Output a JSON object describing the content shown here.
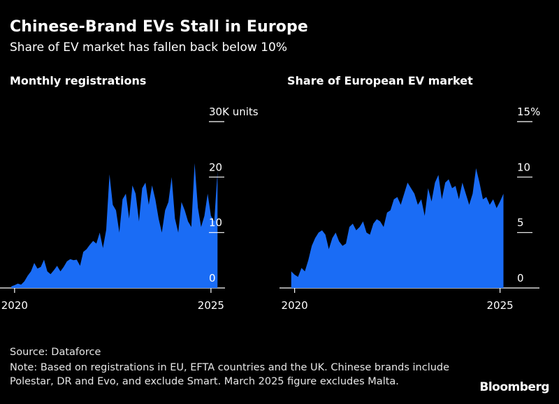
{
  "header": {
    "title": "Chinese-Brand EVs Stall in Europe",
    "subtitle": "Share of EV market has fallen back below 10%"
  },
  "footer": {
    "source": "Source: Dataforce",
    "note": "Note: Based on registrations in EU, EFTA countries and the UK. Chinese brands include Polestar, DR and Evo, and exclude Smart. March 2025 figure excludes Malta.",
    "brand": "Bloomberg"
  },
  "colors": {
    "area": "#1a6cf5",
    "background": "#000000",
    "axis": "#ffffff"
  },
  "chart_data": [
    {
      "type": "area",
      "title": "Monthly registrations",
      "ylabel": "30K units",
      "ylim": [
        0,
        30
      ],
      "yticks": [
        {
          "value": 0,
          "label": "0"
        },
        {
          "value": 10,
          "label": "10"
        },
        {
          "value": 20,
          "label": "20"
        },
        {
          "value": 30,
          "label": "30K units"
        }
      ],
      "xticks": [
        {
          "value": 2020.0,
          "label": "2020"
        },
        {
          "value": 2025.0,
          "label": "2025"
        }
      ],
      "xlim": [
        2019.7,
        2025.5
      ],
      "x": [
        2019.917,
        2020.0,
        2020.083,
        2020.167,
        2020.25,
        2020.333,
        2020.417,
        2020.5,
        2020.583,
        2020.667,
        2020.75,
        2020.833,
        2020.917,
        2021.0,
        2021.083,
        2021.167,
        2021.25,
        2021.333,
        2021.417,
        2021.5,
        2021.583,
        2021.667,
        2021.75,
        2021.833,
        2021.917,
        2022.0,
        2022.083,
        2022.167,
        2022.25,
        2022.333,
        2022.417,
        2022.5,
        2022.583,
        2022.667,
        2022.75,
        2022.833,
        2022.917,
        2023.0,
        2023.083,
        2023.167,
        2023.25,
        2023.333,
        2023.417,
        2023.5,
        2023.583,
        2023.667,
        2023.75,
        2023.833,
        2023.917,
        2024.0,
        2024.083,
        2024.167,
        2024.25,
        2024.333,
        2024.417,
        2024.5,
        2024.583,
        2024.667,
        2024.75,
        2024.833,
        2024.917,
        2025.0,
        2025.083,
        2025.167
      ],
      "y": [
        0.3,
        0.5,
        0.8,
        0.6,
        1.2,
        2.2,
        3.0,
        4.5,
        3.5,
        3.8,
        5.1,
        3.0,
        2.5,
        3.2,
        4.0,
        3.0,
        3.8,
        4.8,
        5.2,
        5.0,
        5.1,
        4.0,
        6.5,
        7.0,
        7.8,
        8.5,
        8.0,
        10.0,
        7.2,
        10.5,
        20.5,
        15.0,
        14.0,
        10.0,
        16.0,
        17.0,
        12.5,
        18.5,
        17.0,
        12.0,
        18.0,
        19.0,
        15.0,
        18.5,
        16.0,
        12.5,
        10.0,
        14.0,
        15.5,
        20.0,
        12.5,
        10.0,
        15.5,
        14.0,
        12.0,
        11.0,
        22.5,
        14.5,
        11.0,
        13.0,
        17.0,
        13.0,
        12.0,
        21.0
      ]
    },
    {
      "type": "area",
      "title": "Share of European EV market",
      "ylabel": "15%",
      "ylim": [
        0,
        15
      ],
      "yticks": [
        {
          "value": 0,
          "label": "0"
        },
        {
          "value": 5,
          "label": "5"
        },
        {
          "value": 10,
          "label": "10"
        },
        {
          "value": 15,
          "label": "15%"
        }
      ],
      "xticks": [
        {
          "value": 2020.0,
          "label": "2020"
        },
        {
          "value": 2025.0,
          "label": "2025"
        }
      ],
      "xlim": [
        2019.7,
        2025.5
      ],
      "x": [
        2019.917,
        2020.0,
        2020.083,
        2020.167,
        2020.25,
        2020.333,
        2020.417,
        2020.5,
        2020.583,
        2020.667,
        2020.75,
        2020.833,
        2020.917,
        2021.0,
        2021.083,
        2021.167,
        2021.25,
        2021.333,
        2021.417,
        2021.5,
        2021.583,
        2021.667,
        2021.75,
        2021.833,
        2021.917,
        2022.0,
        2022.083,
        2022.167,
        2022.25,
        2022.333,
        2022.417,
        2022.5,
        2022.583,
        2022.667,
        2022.75,
        2022.833,
        2022.917,
        2023.0,
        2023.083,
        2023.167,
        2023.25,
        2023.333,
        2023.417,
        2023.5,
        2023.583,
        2023.667,
        2023.75,
        2023.833,
        2023.917,
        2024.0,
        2024.083,
        2024.167,
        2024.25,
        2024.333,
        2024.417,
        2024.5,
        2024.583,
        2024.667,
        2024.75,
        2024.833,
        2024.917,
        2025.0,
        2025.083
      ],
      "y": [
        1.5,
        1.2,
        1.0,
        1.8,
        1.5,
        2.5,
        3.8,
        4.5,
        5.0,
        5.2,
        4.8,
        3.5,
        4.5,
        5.0,
        4.2,
        3.8,
        4.0,
        5.5,
        5.8,
        5.2,
        5.5,
        6.0,
        5.0,
        4.8,
        5.8,
        6.2,
        6.0,
        5.5,
        6.8,
        7.0,
        8.0,
        8.2,
        7.5,
        8.5,
        9.5,
        9.0,
        8.5,
        7.5,
        8.0,
        6.5,
        9.0,
        7.8,
        9.5,
        10.2,
        8.0,
        9.5,
        9.8,
        9.0,
        9.2,
        8.0,
        9.5,
        8.5,
        7.5,
        8.5,
        10.8,
        9.5,
        8.0,
        8.2,
        7.5,
        8.0,
        7.2,
        7.8,
        8.5
      ]
    }
  ]
}
